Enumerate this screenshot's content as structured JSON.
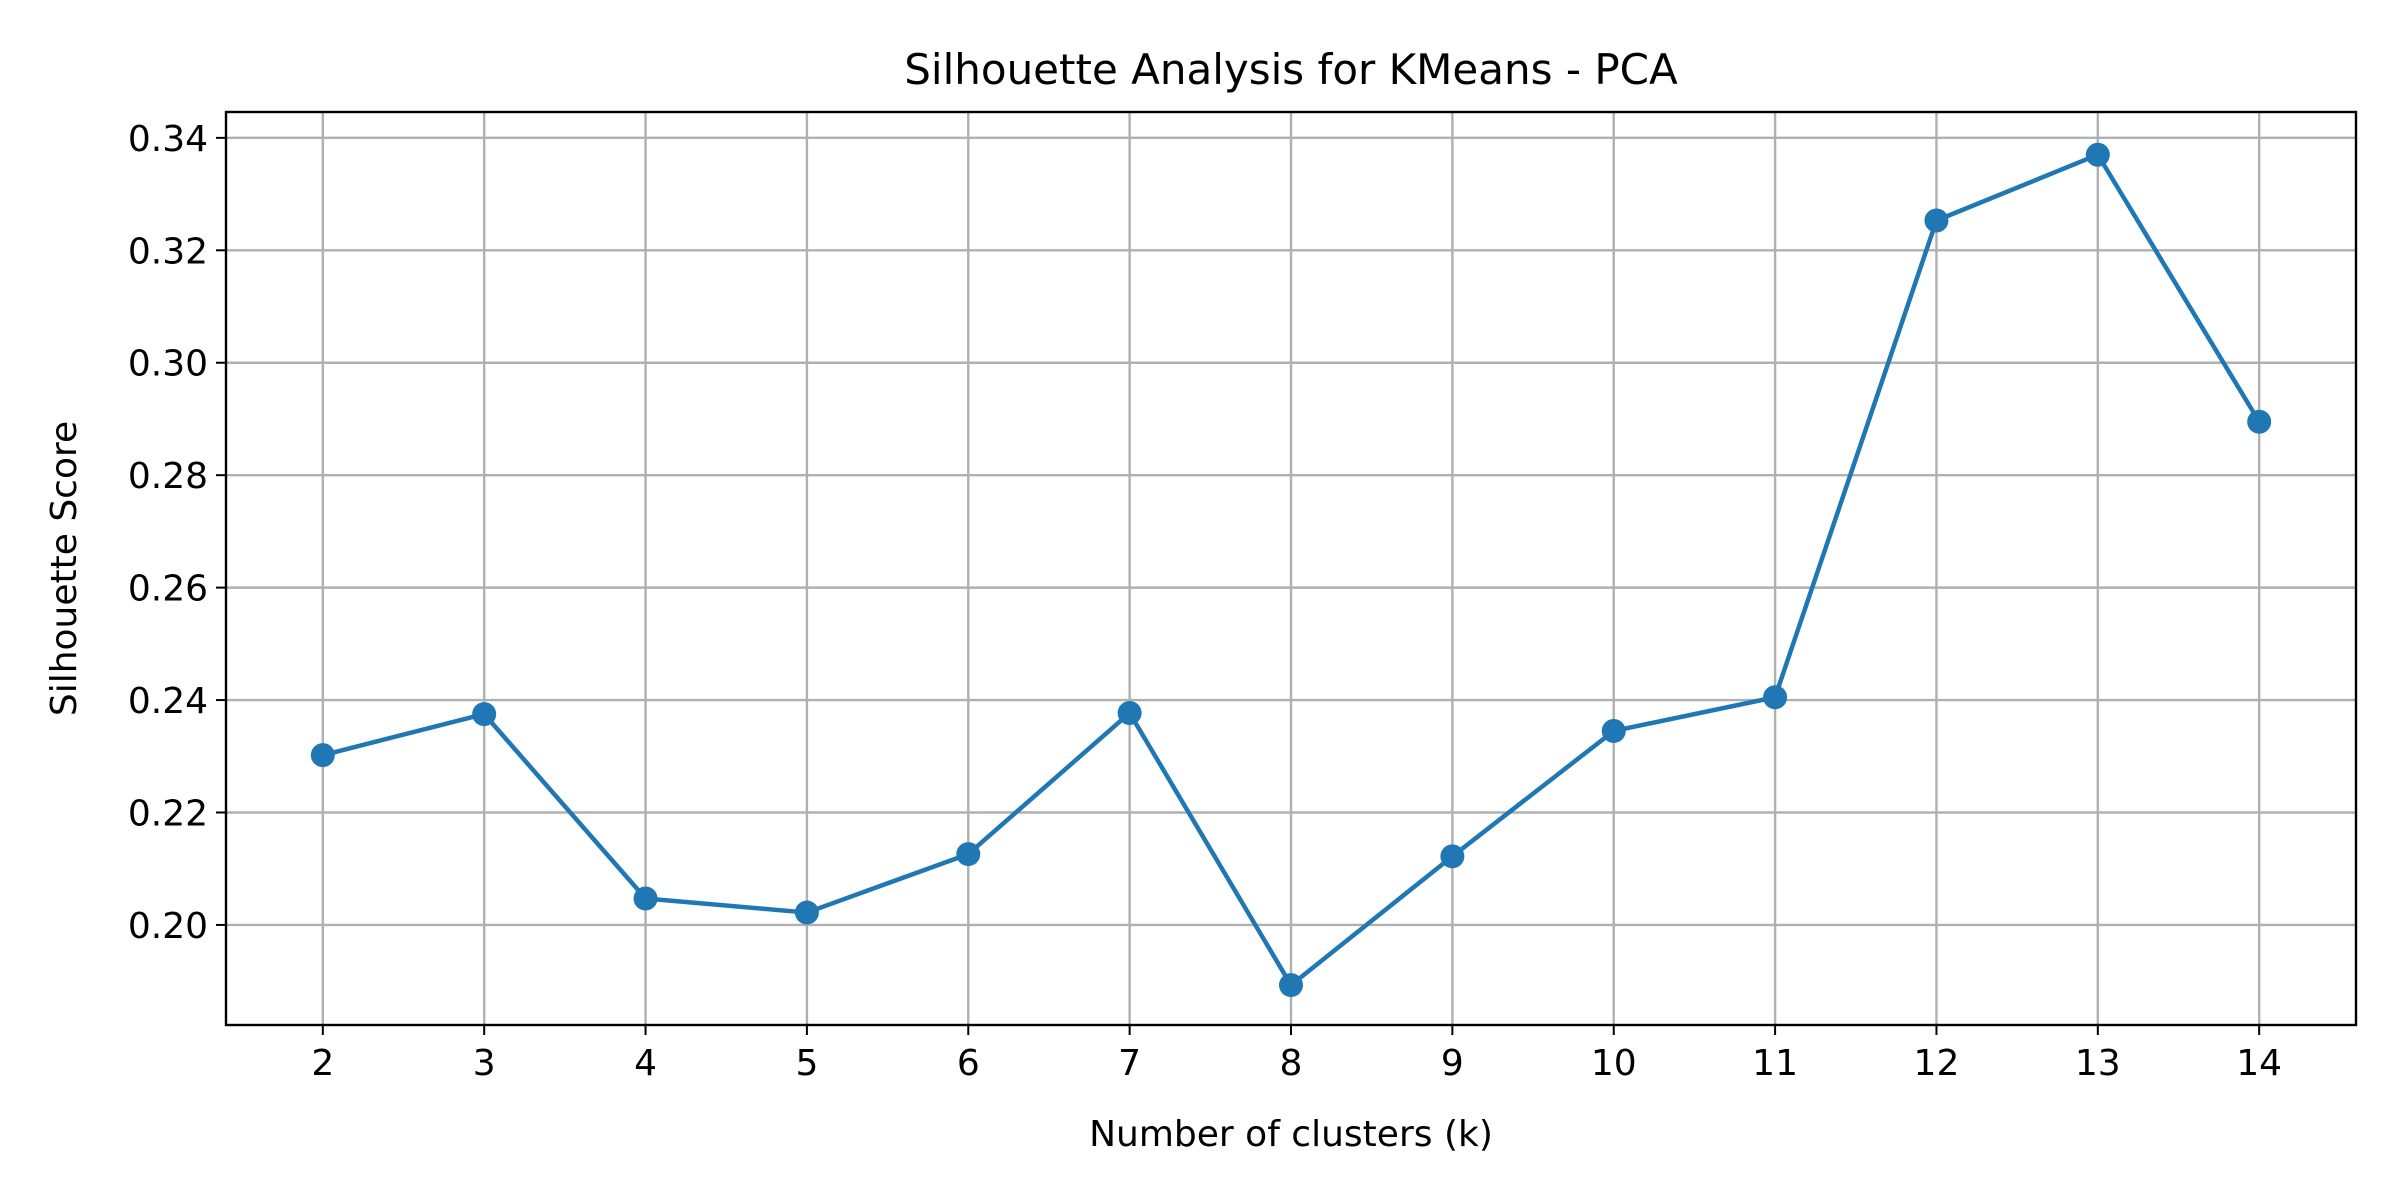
{
  "chart_data": {
    "type": "line",
    "title": "Silhouette Analysis for KMeans - PCA",
    "xlabel": "Number of clusters (k)",
    "ylabel": "Silhouette Score",
    "x": [
      2,
      3,
      4,
      5,
      6,
      7,
      8,
      9,
      10,
      11,
      12,
      13,
      14
    ],
    "series": [
      {
        "values": [
          0.2302,
          0.2375,
          0.2047,
          0.2022,
          0.2126,
          0.2377,
          0.1893,
          0.2122,
          0.2345,
          0.2405,
          0.3253,
          0.337,
          0.2895
        ],
        "color": "#1f77b4",
        "marker": "circle"
      }
    ],
    "xlim": [
      1.4,
      14.6
    ],
    "ylim": [
      0.1822,
      0.3446
    ],
    "xticks": [
      "2",
      "3",
      "4",
      "5",
      "6",
      "7",
      "8",
      "9",
      "10",
      "11",
      "12",
      "13",
      "14"
    ],
    "yticks": [
      "0.20",
      "0.22",
      "0.24",
      "0.26",
      "0.28",
      "0.30",
      "0.32",
      "0.34"
    ],
    "grid": true,
    "legend": false
  }
}
